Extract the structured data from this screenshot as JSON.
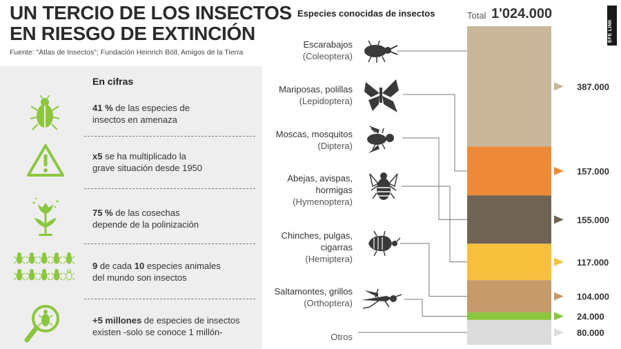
{
  "header": {
    "title_line1": "UN TERCIO DE LOS INSECTOS",
    "title_line2": "EN RIESGO DE EXTINCIÓN",
    "source": "Fuente: \"Atlas de Insectos\"; Fundación Heinrich Böll, Amigos de la Tierra"
  },
  "facts": {
    "heading": "En cifras",
    "items": [
      {
        "bold": "41 %",
        "rest": " de las especies de",
        "line2": "insectos en amenaza",
        "icon": "beetle-icon"
      },
      {
        "bold": "x5",
        "rest": " se ha multiplicado la",
        "line2": "grave situación desde 1950",
        "icon": "warning-icon"
      },
      {
        "bold": "75 %",
        "rest": " de las cosechas",
        "line2": "depende de la polinización",
        "icon": "flower-icon"
      },
      {
        "bold": "9",
        "rest": " de cada ",
        "bold2": "10",
        "rest2": " especies animales",
        "line2": "del mundo son insectos",
        "icon": "insect-grid-icon"
      },
      {
        "bold": "+5 millones",
        "rest": " de especies de insectos",
        "line2": "existen -solo se conoce 1 millón-",
        "icon": "magnifier-icon"
      }
    ]
  },
  "colors": {
    "fact_icon": "#8cc63f",
    "insect_icon": "#3a3a3a",
    "connector": "#777777"
  },
  "chart_data": {
    "type": "bar",
    "title": "Especies conocidas de insectos",
    "total_label": "Total",
    "total_value": "1'024.000",
    "total": 1024000,
    "series": [
      {
        "name": "Escarabajos",
        "latin": "(Coleoptera)",
        "value": 387000,
        "label": "387.000",
        "color": "#c9b79b",
        "icon": "beetle-icon"
      },
      {
        "name": "Mariposas, polillas",
        "latin": "(Lepidoptera)",
        "value": 157000,
        "label": "157.000",
        "color": "#ee8a37",
        "icon": "butterfly-icon"
      },
      {
        "name": "Moscas, mosquitos",
        "latin": "(Diptera)",
        "value": 155000,
        "label": "155.000",
        "color": "#6f6454",
        "icon": "fly-icon"
      },
      {
        "name": "Abejas, avispas, hormigas",
        "name_lines": [
          "Abejas, avispas,",
          "hormigas"
        ],
        "latin": "(Hymenoptera)",
        "value": 117000,
        "label": "117.000",
        "color": "#f7c13e",
        "icon": "bee-icon"
      },
      {
        "name": "Chinches, pulgas, cigarras",
        "name_lines": [
          "Chinches, pulgas,",
          "cigarras"
        ],
        "latin": "(Hemiptera)",
        "value": 104000,
        "label": "104.000",
        "color": "#c69a6a",
        "icon": "bug-icon"
      },
      {
        "name": "Saltamontes, grillos",
        "latin": "(Orthoptera)",
        "value": 24000,
        "label": "24.000",
        "color": "#8cc63f",
        "icon": "grasshopper-icon"
      },
      {
        "name": "Otros",
        "latin": "",
        "value": 80000,
        "label": "80.000",
        "color": "#dcdcdc",
        "icon": ""
      }
    ]
  },
  "brand": {
    "logo_text": "EFE LINK"
  }
}
